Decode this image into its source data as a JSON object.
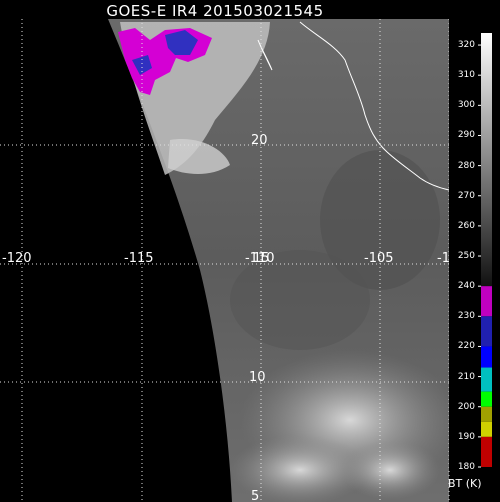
{
  "title": "GOES-E IR4 201503021545",
  "longitude_labels": [
    "-120",
    "-115",
    "-110",
    "-105",
    "-1"
  ],
  "latitude_labels": [
    "20",
    "15",
    "10",
    "5"
  ],
  "colorbar": {
    "ticks": [
      "320",
      "310",
      "300",
      "290",
      "280",
      "270",
      "260",
      "250",
      "240",
      "230",
      "220",
      "210",
      "200",
      "190",
      "180"
    ],
    "units": "BT (K)",
    "gray_top": "#ffffff",
    "gray_bottom": "#111111",
    "color_bands": [
      {
        "from": 240,
        "to": 230,
        "color": "#c000c0"
      },
      {
        "from": 230,
        "to": 220,
        "color": "#2020b0"
      },
      {
        "from": 220,
        "to": 213,
        "color": "#0000ff"
      },
      {
        "from": 213,
        "to": 205,
        "color": "#00c0c0"
      },
      {
        "from": 205,
        "to": 200,
        "color": "#00ff00"
      },
      {
        "from": 200,
        "to": 195,
        "color": "#a0a000"
      },
      {
        "from": 195,
        "to": 190,
        "color": "#d0d000"
      },
      {
        "from": 190,
        "to": 180,
        "color": "#c00000"
      }
    ]
  },
  "colors": {
    "space": "#000000",
    "grid": "#e0e0e0",
    "coastline": "#ffffff",
    "cold_cloud": "#d400d4",
    "very_cold_cloud": "#3030c0"
  }
}
